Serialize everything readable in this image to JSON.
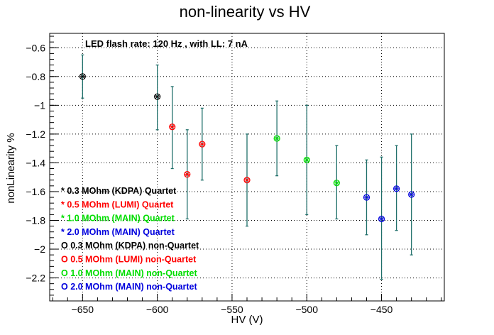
{
  "chart_data": {
    "type": "scatter",
    "title": "non-linearity vs HV",
    "annotation": "LED flash rate: 120 Hz , with LL: 7 nA",
    "xlabel": "HV (V)",
    "ylabel": "nonLinearity %",
    "xlim": [
      -672,
      -408
    ],
    "ylim": [
      -2.36,
      -0.5
    ],
    "xticks": [
      -650,
      -600,
      -550,
      -500,
      -450
    ],
    "xtick_labels": [
      "−650",
      "−600",
      "−550",
      "−500",
      "−450"
    ],
    "yticks": [
      -0.6,
      -0.8,
      -1.0,
      -1.2,
      -1.4,
      -1.6,
      -1.8,
      -2.0,
      -2.2
    ],
    "ytick_labels": [
      "−0.6",
      "−0.8",
      "−1",
      "−1.2",
      "−1.4",
      "−1.6",
      "−1.8",
      "−2",
      "−2.2"
    ],
    "grid": true,
    "legend_position": "lower-left",
    "error_bar_color": "#1f6f6a",
    "legend": [
      {
        "label": "* 0.3 MOhm (KDPA) Quartet",
        "color": "#000000"
      },
      {
        "label": "* 0.5 MOhm (LUMI) Quartet",
        "color": "#ff0000"
      },
      {
        "label": "* 1.0 MOhm (MAIN) Quartet",
        "color": "#00dd00"
      },
      {
        "label": "* 2.0 MOhm (MAIN) Quartet",
        "color": "#0000dd"
      },
      {
        "label": "O 0.3 MOhm (KDPA) non-Quartet",
        "color": "#000000"
      },
      {
        "label": "O 0.5 MOhm (LUMI) non-Quartet",
        "color": "#ff0000"
      },
      {
        "label": "O 1.0 MOhm (MAIN) non-Quartet",
        "color": "#00dd00"
      },
      {
        "label": "O 2.0 MOhm (MAIN) non-Quartet",
        "color": "#0000dd"
      }
    ],
    "series": [
      {
        "color": "#000000",
        "points": [
          {
            "x": -650,
            "y": -0.8,
            "ylo": -0.95,
            "yhi": -0.65
          },
          {
            "x": -600,
            "y": -0.94,
            "ylo": -1.17,
            "yhi": -0.72
          }
        ]
      },
      {
        "color": "#ff0000",
        "points": [
          {
            "x": -590,
            "y": -1.15,
            "ylo": -1.44,
            "yhi": -0.87
          },
          {
            "x": -580,
            "y": -1.48,
            "ylo": -1.79,
            "yhi": -1.17
          },
          {
            "x": -570,
            "y": -1.27,
            "ylo": -1.52,
            "yhi": -1.02
          },
          {
            "x": -540,
            "y": -1.52,
            "ylo": -1.84,
            "yhi": -1.2
          }
        ]
      },
      {
        "color": "#00dd00",
        "points": [
          {
            "x": -520,
            "y": -1.23,
            "ylo": -1.49,
            "yhi": -0.97
          },
          {
            "x": -500,
            "y": -1.38,
            "ylo": -1.76,
            "yhi": -1.0
          },
          {
            "x": -480,
            "y": -1.54,
            "ylo": -1.79,
            "yhi": -1.28
          }
        ]
      },
      {
        "color": "#0000dd",
        "points": [
          {
            "x": -460,
            "y": -1.64,
            "ylo": -1.9,
            "yhi": -1.38
          },
          {
            "x": -450,
            "y": -1.79,
            "ylo": -2.21,
            "yhi": -1.36
          },
          {
            "x": -440,
            "y": -1.58,
            "ylo": -1.87,
            "yhi": -1.28
          },
          {
            "x": -430,
            "y": -1.62,
            "ylo": -2.04,
            "yhi": -1.2
          }
        ]
      }
    ]
  }
}
